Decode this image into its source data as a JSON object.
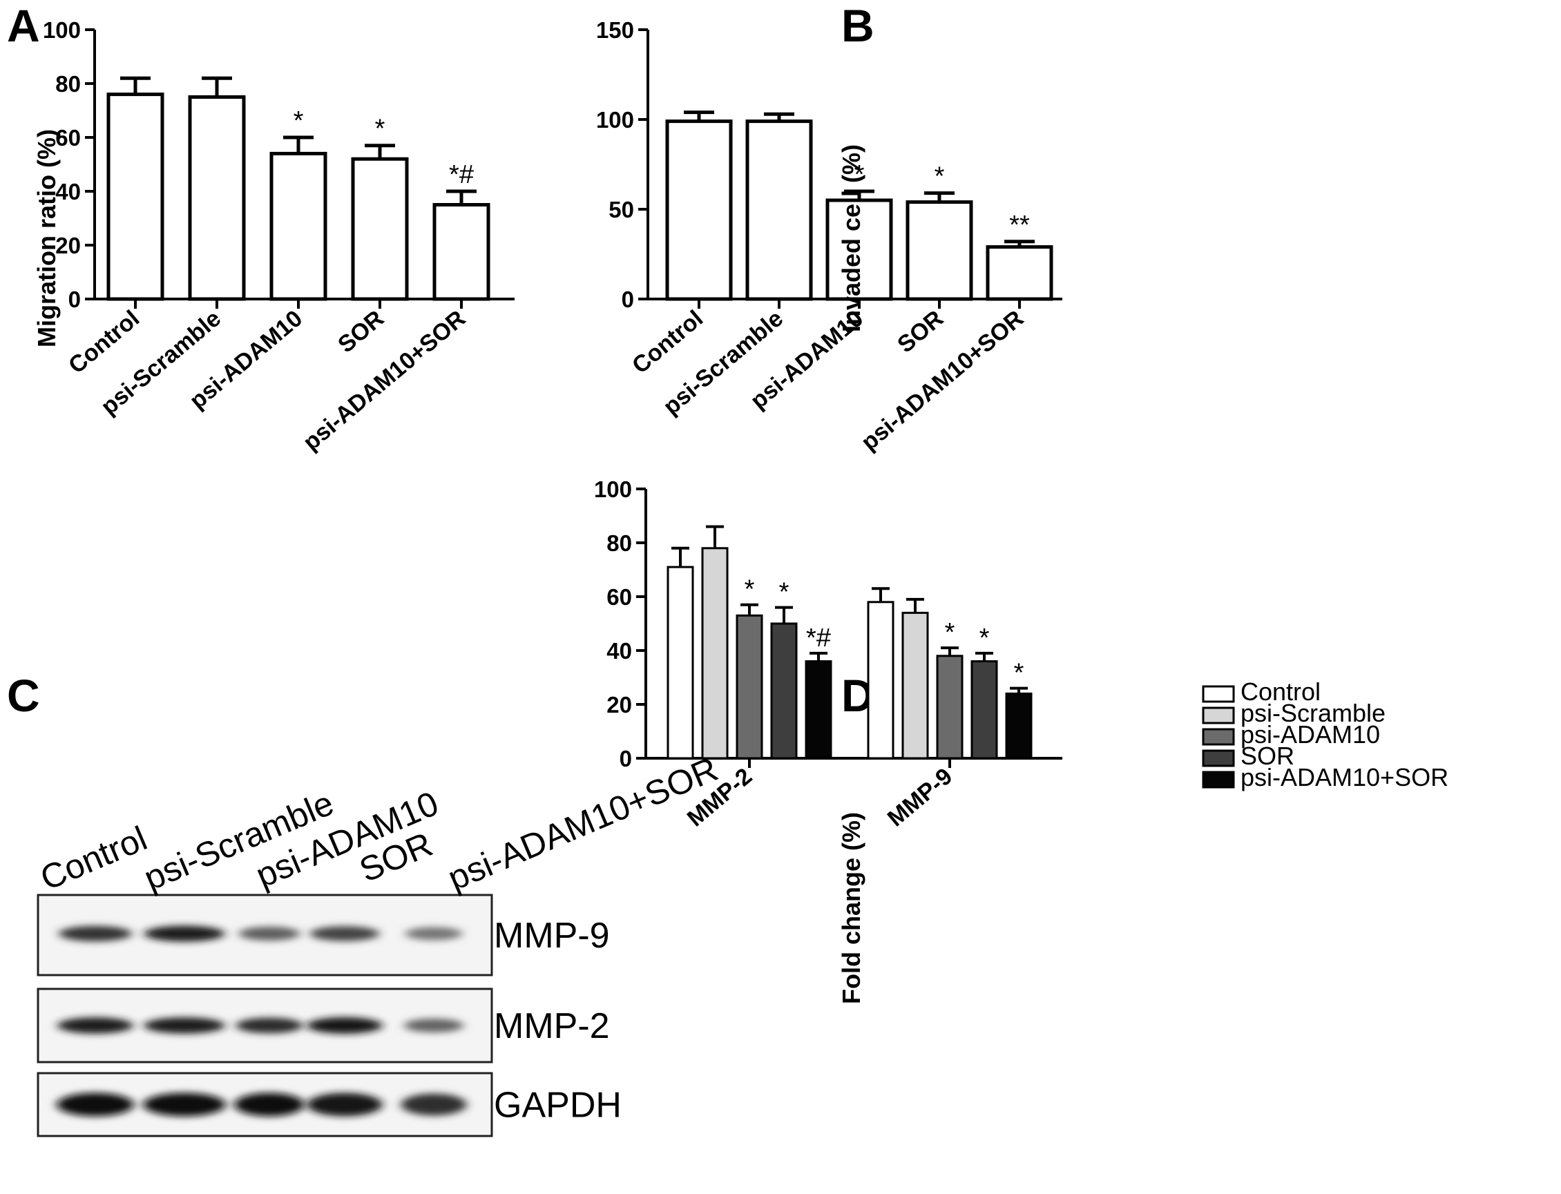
{
  "panels": {
    "a": "A",
    "b": "B",
    "c": "C",
    "d": "D"
  },
  "chart_data": [
    {
      "type": "bar",
      "ylabel": "Migration ratio (%)",
      "ylim": [
        0,
        100
      ],
      "yticks": [
        0,
        20,
        40,
        60,
        80,
        100
      ],
      "categories": [
        "Control",
        "psi-Scramble",
        "psi-ADAM10",
        "SOR",
        "psi-ADAM10+SOR"
      ],
      "values": [
        76,
        75,
        54,
        52,
        35
      ],
      "errors": [
        6,
        7,
        6,
        5,
        5
      ],
      "annotations": [
        "",
        "",
        "*",
        "*",
        "*#"
      ]
    },
    {
      "type": "bar",
      "ylabel": "Invaded cell (%)",
      "ylim": [
        0,
        150
      ],
      "yticks": [
        0,
        50,
        100,
        150
      ],
      "categories": [
        "Control",
        "psi-Scramble",
        "psi-ADAM10",
        "SOR",
        "psi-ADAM10+SOR"
      ],
      "values": [
        99,
        99,
        55,
        54,
        29
      ],
      "errors": [
        5,
        4,
        5,
        5,
        3
      ],
      "annotations": [
        "",
        "",
        "*",
        "*",
        "**"
      ]
    },
    {
      "type": "bar",
      "ylabel": "Fold change (%)",
      "ylim": [
        0,
        100
      ],
      "yticks": [
        0,
        20,
        40,
        60,
        80,
        100
      ],
      "categories": [
        "MMP-2",
        "MMP-9"
      ],
      "legend_position": "top-right",
      "series": [
        {
          "name": "Control",
          "values": [
            71,
            58
          ],
          "errors": [
            7,
            5
          ],
          "annotations": [
            "",
            ""
          ],
          "color": "#ffffff"
        },
        {
          "name": "psi-Scramble",
          "values": [
            78,
            54
          ],
          "errors": [
            8,
            5
          ],
          "annotations": [
            "",
            ""
          ],
          "color": "#d6d6d6"
        },
        {
          "name": "psi-ADAM10",
          "values": [
            53,
            38
          ],
          "errors": [
            4,
            3
          ],
          "annotations": [
            "*",
            "*"
          ],
          "color": "#6b6b6b"
        },
        {
          "name": "SOR",
          "values": [
            50,
            36
          ],
          "errors": [
            6,
            3
          ],
          "annotations": [
            "*",
            "*"
          ],
          "color": "#3e3e3e"
        },
        {
          "name": "psi-ADAM10+SOR",
          "values": [
            36,
            24
          ],
          "errors": [
            3,
            2
          ],
          "annotations": [
            "*#",
            "*"
          ],
          "color": "#050505"
        }
      ]
    }
  ],
  "blot": {
    "lanes": [
      "Control",
      "psi-Scramble",
      "psi-ADAM10",
      "SOR",
      "psi-ADAM10+SOR"
    ],
    "proteins": [
      "MMP-9",
      "MMP-2",
      "GAPDH"
    ],
    "intensity": [
      [
        0.78,
        0.9,
        0.48,
        0.66,
        0.32
      ],
      [
        0.92,
        0.92,
        0.82,
        0.98,
        0.45
      ],
      [
        1.0,
        1.0,
        1.0,
        0.98,
        0.8
      ]
    ]
  }
}
